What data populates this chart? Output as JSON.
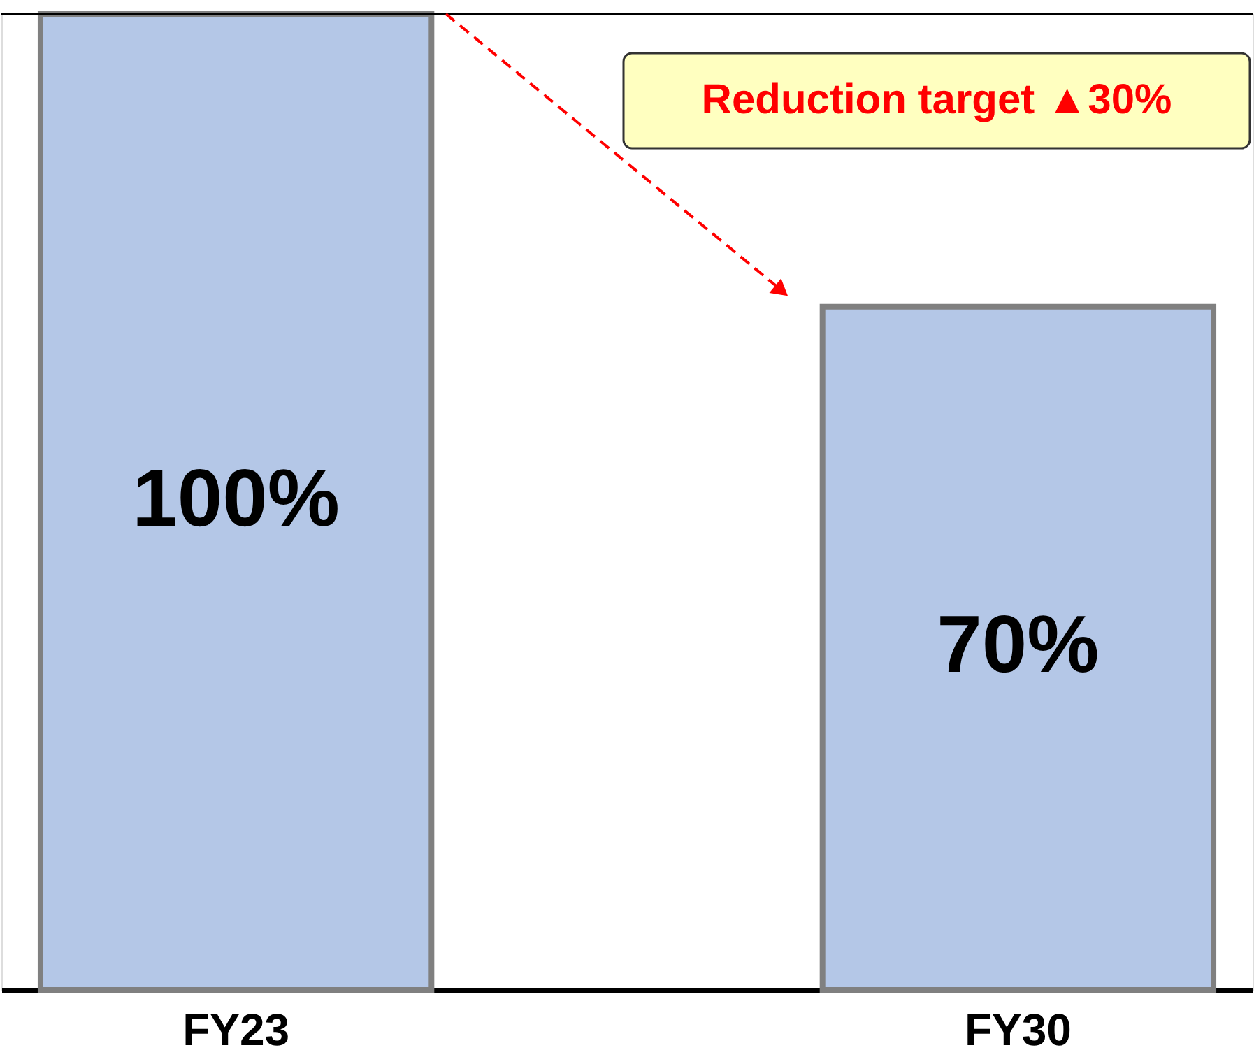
{
  "chart_data": {
    "type": "bar",
    "categories": [
      "FY23",
      "FY30"
    ],
    "values": [
      100,
      70
    ],
    "value_labels": [
      "100%",
      "70%"
    ],
    "color": "#b4c7e7",
    "annotations": [
      "Reduction target ▲30%"
    ],
    "ref_lines": [
      {
        "axis": "y",
        "value": 100,
        "color": "#000000"
      }
    ]
  }
}
